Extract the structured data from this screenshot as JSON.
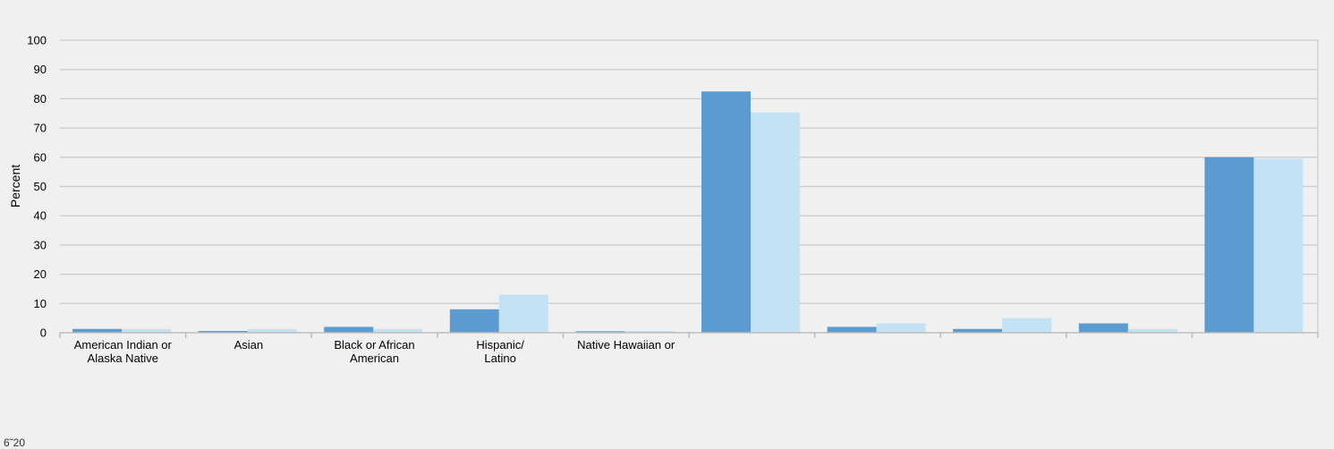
{
  "chart_data": {
    "type": "bar",
    "ylabel": "Percent",
    "ylim": [
      0,
      100
    ],
    "yticks": [
      0,
      10,
      20,
      30,
      40,
      50,
      60,
      70,
      80,
      90,
      100
    ],
    "grid": true,
    "categories": [
      [
        "American Indian or",
        "Alaska Native"
      ],
      [
        "Asian"
      ],
      [
        "Black or African",
        "American"
      ],
      [
        "Hispanic/",
        "Latino"
      ],
      [
        "Native Hawaiian or"
      ],
      [],
      [],
      [],
      [],
      []
    ],
    "series": [
      {
        "color": "#5b9bd0",
        "values": [
          1.3,
          0.6,
          2.0,
          8.0,
          0.5,
          82.5,
          2.0,
          1.3,
          3.2,
          60.0
        ]
      },
      {
        "color": "#c4e2f5",
        "values": [
          1.3,
          1.3,
          1.3,
          13.0,
          0.6,
          75.3,
          3.2,
          5.0,
          1.3,
          59.5
        ]
      }
    ]
  },
  "footer_text": "6˜20"
}
